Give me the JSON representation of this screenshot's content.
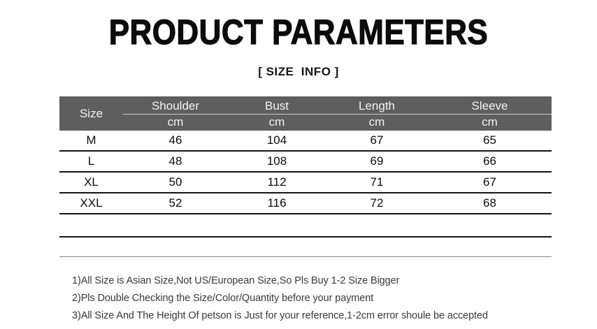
{
  "header": {
    "title": "PRODUCT PARAMETERS",
    "subtitle": "[ SIZE  INFO ]"
  },
  "size_table": {
    "corner_label": "Size",
    "unit_label": "cm",
    "measure_columns": [
      "Shoulder",
      "Bust",
      "Length",
      "Sleeve"
    ],
    "rows": [
      {
        "size": "M",
        "shoulder": "46",
        "bust": "104",
        "length": "67",
        "sleeve": "65"
      },
      {
        "size": "L",
        "shoulder": "48",
        "bust": "108",
        "length": "69",
        "sleeve": "66"
      },
      {
        "size": "XL",
        "shoulder": "50",
        "bust": "112",
        "length": "71",
        "sleeve": "67"
      },
      {
        "size": "XXL",
        "shoulder": "52",
        "bust": "116",
        "length": "72",
        "sleeve": "68"
      }
    ]
  },
  "notes": {
    "line1": "1)All Size is Asian Size,Not US/European Size,So Pls Buy 1-2 Size Bigger",
    "line2": "2)Pls Double Checking the Size/Color/Quantity before your payment",
    "line3": "3)All Size And The Height Of petson is Just for your reference,1-2cm error shoule be accepted"
  },
  "colors": {
    "header_bg": "#5e5e5e",
    "header_text": "#f4f4f4",
    "divider_light": "#c9c9c9",
    "row_line": "#141414",
    "note_text": "#3a3a3a"
  }
}
